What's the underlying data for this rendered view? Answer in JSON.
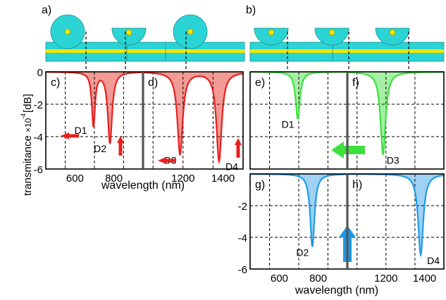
{
  "figure": {
    "ylabel_main": "transmitance",
    "ylabel_scale": "×10",
    "ylabel_exponent": "-4",
    "ylabel_unit": "[dB]",
    "xlabel": "wavelength (nm)"
  },
  "colors": {
    "cyan": "#2bd4d4",
    "yellow": "#f2e600",
    "red_fill": "#f29a96",
    "red_line": "#e8201e",
    "green_fill": "#a6f0a6",
    "green_line": "#3ee03e",
    "blue_fill": "#9fd1f2",
    "blue_line": "#1f9be8",
    "blue_arrow": "#1b97e8"
  },
  "schematics": [
    {
      "label": "a)",
      "resonators": [
        "full-disk",
        "half-disk",
        "full-disk"
      ]
    },
    {
      "label": "b)",
      "resonators": [
        "half-disk",
        "half-disk",
        "half-disk"
      ]
    }
  ],
  "chart_data": [
    {
      "type": "area",
      "panel": "c)",
      "xlim": [
        450,
        950
      ],
      "ylim": [
        -6,
        0
      ],
      "xticks": [
        600,
        800
      ],
      "yticks": [
        0,
        -2,
        -4,
        -6
      ],
      "grid": true,
      "color": "red",
      "dips": [
        {
          "label": "D1",
          "x": 695,
          "y": -3.3
        },
        {
          "label": "D2",
          "x": 780,
          "y": -4.4
        }
      ],
      "arrows": [
        "left",
        "up"
      ]
    },
    {
      "type": "area",
      "panel": "d)",
      "xlim": [
        1000,
        1500
      ],
      "ylim": [
        -6,
        0
      ],
      "xticks": [
        1200,
        1400
      ],
      "grid": true,
      "color": "red",
      "dips": [
        {
          "label": "D3",
          "x": 1185,
          "y": -5.1
        },
        {
          "label": "D4",
          "x": 1380,
          "y": -5.5
        }
      ],
      "arrows": [
        "left",
        "up"
      ]
    },
    {
      "type": "area",
      "panel": "e)",
      "xlim": [
        450,
        950
      ],
      "ylim": [
        -6,
        0
      ],
      "grid": true,
      "color": "green",
      "dips": [
        {
          "label": "D1",
          "x": 695,
          "y": -2.9
        }
      ]
    },
    {
      "type": "area",
      "panel": "f)",
      "xlim": [
        1000,
        1500
      ],
      "ylim": [
        -6,
        0
      ],
      "grid": true,
      "color": "green",
      "dips": [
        {
          "label": "D3",
          "x": 1185,
          "y": -5.1
        }
      ],
      "arrows": [
        "left"
      ]
    },
    {
      "type": "area",
      "panel": "g)",
      "xlim": [
        450,
        950
      ],
      "ylim": [
        -6,
        0
      ],
      "xticks": [
        600,
        800
      ],
      "yticks": [
        -2,
        -4,
        -6
      ],
      "grid": true,
      "color": "blue",
      "dips": [
        {
          "label": "D2",
          "x": 770,
          "y": -4.6
        }
      ]
    },
    {
      "type": "area",
      "panel": "h)",
      "xlim": [
        1000,
        1500
      ],
      "ylim": [
        -6,
        0
      ],
      "xticks": [
        1200,
        1400
      ],
      "grid": true,
      "color": "blue",
      "dips": [
        {
          "label": "D4",
          "x": 1380,
          "y": -5.1
        }
      ],
      "arrows": [
        "up"
      ]
    }
  ]
}
